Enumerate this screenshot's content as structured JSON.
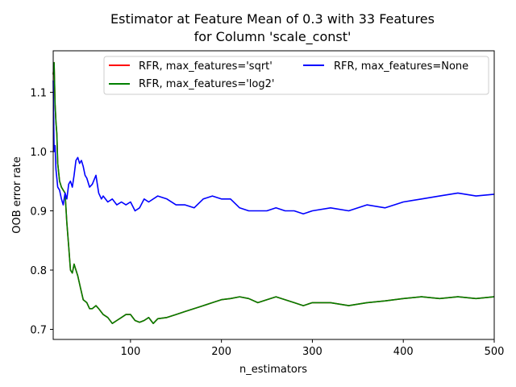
{
  "chart_data": {
    "type": "line",
    "title_lines": [
      "Estimator at Feature Mean of 0.3 with 33 Features",
      "for Column 'scale_const'"
    ],
    "xlabel": "n_estimators",
    "ylabel": "OOB error rate",
    "xlim": [
      15,
      500
    ],
    "ylim": [
      0.683,
      1.17
    ],
    "xticks": [
      100,
      200,
      300,
      400,
      500
    ],
    "yticks": [
      0.7,
      0.8,
      0.9,
      1.0,
      1.1
    ],
    "xtick_labels": [
      "100",
      "200",
      "300",
      "400",
      "500"
    ],
    "ytick_labels": [
      "0.7",
      "0.8",
      "0.9",
      "1.0",
      "1.1"
    ],
    "grid": false,
    "legend_position": "top-right",
    "series": [
      {
        "name": "RFR, max_features='sqrt'",
        "color": "#ff0000",
        "x": [
          15,
          16,
          17,
          18,
          19,
          20,
          22,
          24,
          26,
          28,
          30,
          32,
          34,
          36,
          38,
          40,
          42,
          45,
          48,
          52,
          55,
          58,
          62,
          65,
          70,
          75,
          80,
          85,
          90,
          95,
          100,
          105,
          110,
          115,
          120,
          125,
          130,
          140,
          150,
          160,
          170,
          180,
          190,
          200,
          210,
          220,
          230,
          240,
          250,
          260,
          270,
          280,
          290,
          300,
          320,
          340,
          360,
          380,
          400,
          420,
          440,
          460,
          480,
          500
        ],
        "values": [
          1.13,
          1.15,
          1.08,
          1.05,
          1.03,
          0.98,
          0.95,
          0.94,
          0.935,
          0.93,
          0.88,
          0.84,
          0.8,
          0.795,
          0.81,
          0.8,
          0.79,
          0.77,
          0.75,
          0.745,
          0.735,
          0.735,
          0.74,
          0.735,
          0.725,
          0.72,
          0.71,
          0.715,
          0.72,
          0.725,
          0.725,
          0.715,
          0.712,
          0.715,
          0.72,
          0.71,
          0.718,
          0.72,
          0.725,
          0.73,
          0.735,
          0.74,
          0.745,
          0.75,
          0.752,
          0.755,
          0.752,
          0.745,
          0.75,
          0.755,
          0.75,
          0.745,
          0.74,
          0.745,
          0.745,
          0.74,
          0.745,
          0.748,
          0.752,
          0.755,
          0.752,
          0.755,
          0.752,
          0.755
        ]
      },
      {
        "name": "RFR, max_features='log2'",
        "color": "#008000",
        "x": [
          15,
          16,
          17,
          18,
          19,
          20,
          22,
          24,
          26,
          28,
          30,
          32,
          34,
          36,
          38,
          40,
          42,
          45,
          48,
          52,
          55,
          58,
          62,
          65,
          70,
          75,
          80,
          85,
          90,
          95,
          100,
          105,
          110,
          115,
          120,
          125,
          130,
          140,
          150,
          160,
          170,
          180,
          190,
          200,
          210,
          220,
          230,
          240,
          250,
          260,
          270,
          280,
          290,
          300,
          320,
          340,
          360,
          380,
          400,
          420,
          440,
          460,
          480,
          500
        ],
        "values": [
          1.13,
          1.15,
          1.08,
          1.05,
          1.03,
          0.98,
          0.95,
          0.94,
          0.935,
          0.93,
          0.88,
          0.84,
          0.8,
          0.795,
          0.81,
          0.8,
          0.79,
          0.77,
          0.75,
          0.745,
          0.735,
          0.735,
          0.74,
          0.735,
          0.725,
          0.72,
          0.71,
          0.715,
          0.72,
          0.725,
          0.725,
          0.715,
          0.712,
          0.715,
          0.72,
          0.71,
          0.718,
          0.72,
          0.725,
          0.73,
          0.735,
          0.74,
          0.745,
          0.75,
          0.752,
          0.755,
          0.752,
          0.745,
          0.75,
          0.755,
          0.75,
          0.745,
          0.74,
          0.745,
          0.745,
          0.74,
          0.745,
          0.748,
          0.752,
          0.755,
          0.752,
          0.755,
          0.752,
          0.755
        ]
      },
      {
        "name": "RFR, max_features=None",
        "color": "#0000ff",
        "x": [
          15,
          16,
          17,
          18,
          19,
          20,
          22,
          24,
          26,
          28,
          30,
          32,
          34,
          36,
          38,
          40,
          42,
          44,
          46,
          48,
          50,
          52,
          55,
          58,
          62,
          65,
          68,
          70,
          75,
          80,
          85,
          90,
          95,
          100,
          105,
          110,
          115,
          120,
          130,
          140,
          150,
          160,
          170,
          180,
          190,
          200,
          210,
          220,
          230,
          240,
          250,
          260,
          270,
          280,
          290,
          300,
          320,
          340,
          360,
          380,
          400,
          420,
          440,
          460,
          480,
          500
        ],
        "values": [
          1.12,
          1.0,
          1.01,
          0.97,
          0.955,
          0.94,
          0.935,
          0.92,
          0.91,
          0.93,
          0.92,
          0.945,
          0.95,
          0.94,
          0.96,
          0.985,
          0.99,
          0.98,
          0.985,
          0.975,
          0.96,
          0.955,
          0.94,
          0.945,
          0.96,
          0.93,
          0.92,
          0.925,
          0.915,
          0.92,
          0.91,
          0.915,
          0.91,
          0.915,
          0.9,
          0.905,
          0.92,
          0.915,
          0.925,
          0.92,
          0.91,
          0.91,
          0.905,
          0.92,
          0.925,
          0.92,
          0.92,
          0.905,
          0.9,
          0.9,
          0.9,
          0.905,
          0.9,
          0.9,
          0.895,
          0.9,
          0.905,
          0.9,
          0.91,
          0.905,
          0.915,
          0.92,
          0.925,
          0.93,
          0.925,
          0.928
        ]
      }
    ]
  }
}
